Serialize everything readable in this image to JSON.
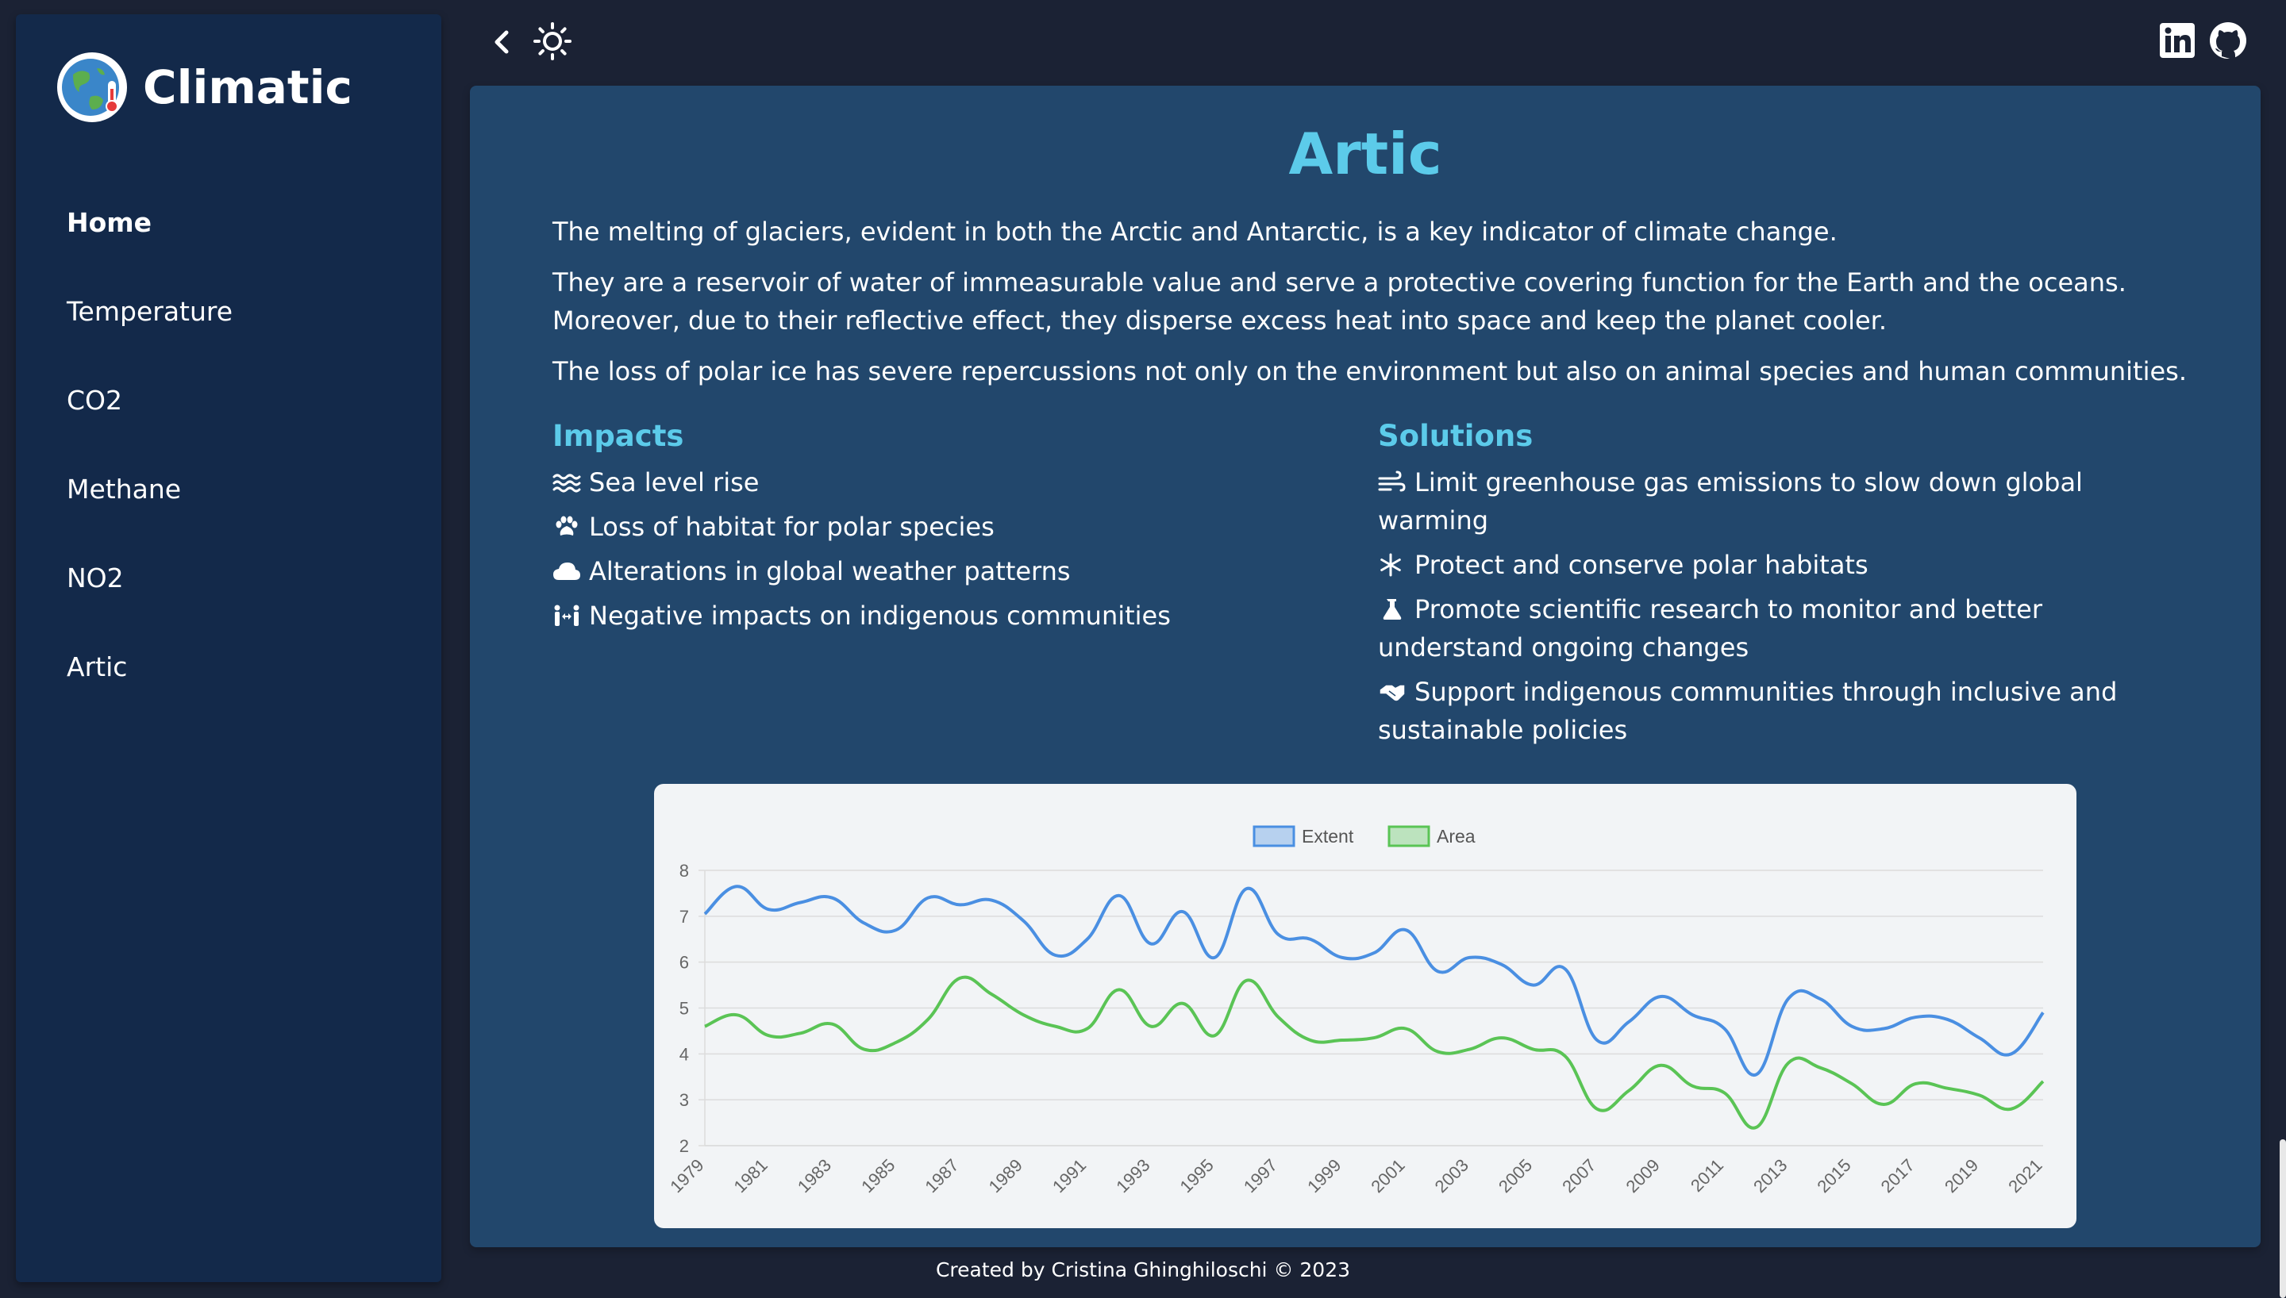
{
  "app": {
    "name": "Climatic"
  },
  "sidebar": {
    "items": [
      {
        "label": "Home",
        "active": true
      },
      {
        "label": "Temperature"
      },
      {
        "label": "CO2"
      },
      {
        "label": "Methane"
      },
      {
        "label": "NO2"
      },
      {
        "label": "Artic"
      }
    ]
  },
  "topbar": {
    "back_icon": "chevron-left-icon",
    "theme_icon": "sun-icon",
    "linkedin_icon": "linkedin-icon",
    "github_icon": "github-icon"
  },
  "main": {
    "title": "Artic",
    "paragraphs": [
      "The melting of glaciers, evident in both the Arctic and Antarctic, is a key indicator of climate change.",
      "They are a reservoir of water of immeasurable value and serve a protective covering function for the Earth and the oceans.\nMoreover, due to their reflective effect, they disperse excess heat into space and keep the planet cooler.",
      "The loss of polar ice has severe repercussions not only on the environment but also on animal species and human communities."
    ],
    "impacts": {
      "title": "Impacts",
      "items": [
        {
          "icon": "water-waves-icon",
          "text": "Sea level rise"
        },
        {
          "icon": "paw-icon",
          "text": "Loss of habitat for polar species"
        },
        {
          "icon": "cloud-icon",
          "text": "Alterations in global weather patterns"
        },
        {
          "icon": "people-arrows-icon",
          "text": "Negative impacts on indigenous communities"
        }
      ]
    },
    "solutions": {
      "title": "Solutions",
      "items": [
        {
          "icon": "wind-icon",
          "text": "Limit greenhouse gas emissions to slow down global warming"
        },
        {
          "icon": "snowflake-icon",
          "text": "Protect and conserve polar habitats"
        },
        {
          "icon": "flask-icon",
          "text": "Promote scientific research to monitor and better understand ongoing changes"
        },
        {
          "icon": "handshake-icon",
          "text": "Support indigenous communities through inclusive and sustainable policies"
        }
      ]
    }
  },
  "colors": {
    "extent": "#4a8fe2",
    "area": "#5ac455",
    "accent": "#5ccbea"
  },
  "chart_data": {
    "type": "line",
    "title": "",
    "xlabel": "",
    "ylabel": "",
    "ylim": [
      2,
      8
    ],
    "yticks": [
      2,
      3,
      4,
      5,
      6,
      7,
      8
    ],
    "grid": true,
    "legend": "top-center",
    "x": [
      1979,
      1980,
      1981,
      1982,
      1983,
      1984,
      1985,
      1986,
      1987,
      1988,
      1989,
      1990,
      1991,
      1992,
      1993,
      1994,
      1995,
      1996,
      1997,
      1998,
      1999,
      2000,
      2001,
      2002,
      2003,
      2004,
      2005,
      2006,
      2007,
      2008,
      2009,
      2010,
      2011,
      2012,
      2013,
      2014,
      2015,
      2016,
      2017,
      2018,
      2019,
      2020,
      2021
    ],
    "x_tick_labels": [
      "1979",
      "1981",
      "1983",
      "1985",
      "1987",
      "1989",
      "1991",
      "1993",
      "1995",
      "1997",
      "1999",
      "2001",
      "2003",
      "2005",
      "2007",
      "2009",
      "2011",
      "2013",
      "2015",
      "2017",
      "2019",
      "2021"
    ],
    "series": [
      {
        "name": "Extent",
        "values": [
          7.05,
          7.65,
          7.15,
          7.3,
          7.4,
          6.85,
          6.7,
          7.4,
          7.25,
          7.35,
          6.9,
          6.15,
          6.5,
          7.45,
          6.4,
          7.1,
          6.1,
          7.6,
          6.6,
          6.5,
          6.1,
          6.2,
          6.7,
          5.8,
          6.1,
          5.95,
          5.5,
          5.85,
          4.3,
          4.7,
          5.25,
          4.85,
          4.55,
          3.55,
          5.2,
          5.2,
          4.6,
          4.55,
          4.8,
          4.75,
          4.35,
          4.0,
          4.9
        ]
      },
      {
        "name": "Area",
        "values": [
          4.6,
          4.85,
          4.4,
          4.45,
          4.65,
          4.1,
          4.25,
          4.75,
          5.65,
          5.3,
          4.85,
          4.6,
          4.55,
          5.4,
          4.6,
          5.1,
          4.4,
          5.6,
          4.8,
          4.3,
          4.3,
          4.35,
          4.55,
          4.05,
          4.1,
          4.35,
          4.1,
          3.95,
          2.8,
          3.2,
          3.75,
          3.3,
          3.15,
          2.4,
          3.8,
          3.7,
          3.35,
          2.9,
          3.35,
          3.25,
          3.1,
          2.8,
          3.4
        ]
      }
    ]
  },
  "footer": {
    "text": "Created by Cristina Ghinghiloschi © 2023"
  }
}
